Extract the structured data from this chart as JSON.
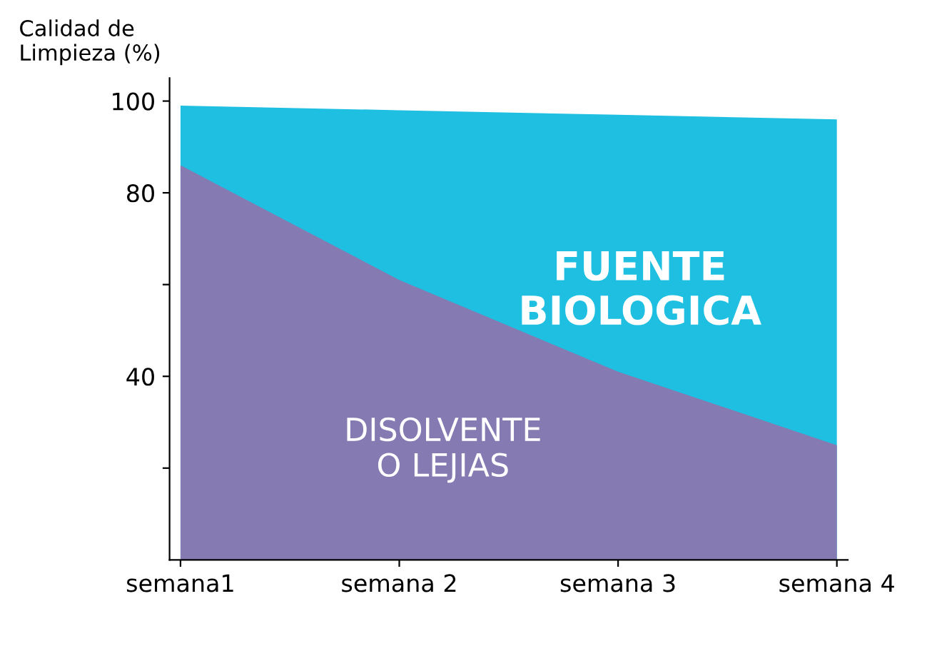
{
  "chart_data": {
    "type": "area",
    "ylabel": "Calidad de\nLimpieza (%)",
    "categories": [
      "semana1",
      "semana 2",
      "semana 3",
      "semana 4"
    ],
    "series": [
      {
        "name": "FUENTE\nBIOLOGICA",
        "color": "#1ebfe0",
        "values": [
          99,
          98,
          97,
          96
        ]
      },
      {
        "name": "DISOLVENTE\nO LEJIAS",
        "color": "#857bb2",
        "values": [
          86,
          61,
          41,
          25
        ]
      }
    ],
    "ylim": [
      0,
      105
    ],
    "yticks": [
      {
        "value": 20,
        "label": null
      },
      40,
      {
        "value": 60,
        "label": null
      },
      80,
      100
    ],
    "grid": false,
    "legend": false
  }
}
